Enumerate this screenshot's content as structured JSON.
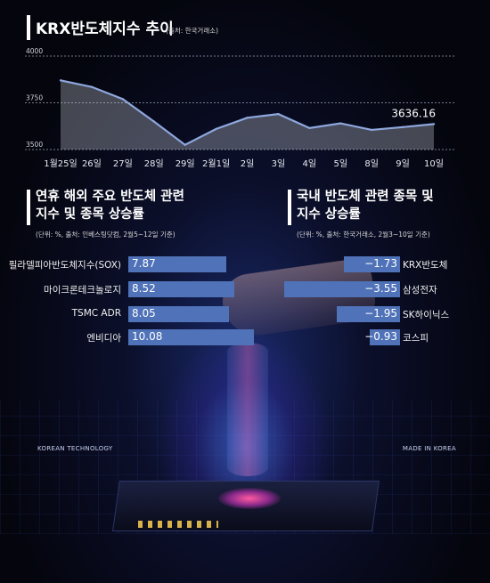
{
  "header": {
    "title": "KRX반도체지수 추이",
    "source": "(출처: 한국거래소)"
  },
  "chart_data": [
    {
      "type": "area",
      "categories": [
        "1월25일",
        "26일",
        "27일",
        "28일",
        "29일",
        "2월1일",
        "2일",
        "3일",
        "4일",
        "5일",
        "8일",
        "9일",
        "10일"
      ],
      "values": [
        3870,
        3835,
        3770,
        3650,
        3525,
        3610,
        3670,
        3690,
        3615,
        3640,
        3605,
        3620,
        3636.16
      ],
      "ylim": [
        3500,
        4000
      ],
      "yticks": [
        "4000",
        "3750",
        "3500"
      ],
      "last_value_label": "3636.16",
      "color": "#8ea7dd"
    },
    {
      "type": "bar",
      "title": "연휴 해외 주요 반도체 관련 지수 및 종목 상승률",
      "note": "(단위: %, 출처: 인베스팅닷컴, 2월5~12일 기준)",
      "categories": [
        "필라델피아반도체지수(SOX)",
        "마이크론테크놀로지",
        "TSMC ADR",
        "엔비디아"
      ],
      "values": [
        7.87,
        8.52,
        8.05,
        10.08
      ],
      "labels": [
        "7.87",
        "8.52",
        "8.05",
        "10.08"
      ],
      "color": "#4f72b8"
    },
    {
      "type": "bar",
      "title": "국내 반도체 관련 종목 및 지수 상승률",
      "note": "(단위: %, 출처: 한국거래소, 2월3~10일 기준)",
      "categories": [
        "KRX반도체",
        "삼성전자",
        "SK하이닉스",
        "코스피"
      ],
      "values": [
        -1.73,
        -3.55,
        -1.95,
        -0.93
      ],
      "labels": [
        "−1.73",
        "−3.55",
        "−1.95",
        "−0.93"
      ],
      "color": "#4f72b8"
    }
  ],
  "left_section": {
    "title_line1": "연휴 해외 주요 반도체 관련",
    "title_line2": "지수 및 종목 상승률"
  },
  "right_section": {
    "title_line1": "국내 반도체 관련 종목 및",
    "title_line2": "지수 상승률"
  },
  "background": {
    "left_text": "KOREAN TECHNOLOGY",
    "right_text": "MADE IN KOREA"
  }
}
